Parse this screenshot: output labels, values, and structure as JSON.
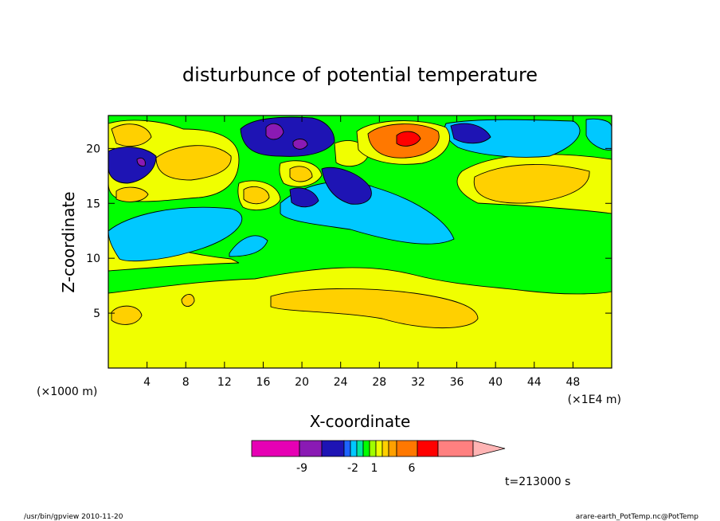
{
  "chart_data": {
    "type": "heatmap",
    "title": "disturbunce of potential temperature",
    "xlabel": "X-coordinate",
    "ylabel": "Z-coordinate",
    "x_unit_note": "(×1E4 m)",
    "y_unit_note": "(×1000 m)",
    "xlim": [
      0,
      52
    ],
    "ylim": [
      0,
      23
    ],
    "x_ticks": [
      4,
      8,
      12,
      16,
      20,
      24,
      28,
      32,
      36,
      40,
      44,
      48
    ],
    "y_ticks": [
      5,
      10,
      15,
      20
    ],
    "colorbar": {
      "labels": [
        "-9",
        "-2",
        "1",
        "6"
      ],
      "colors": [
        "#e600b4",
        "#8a1ab4",
        "#1e14b4",
        "#1e64ff",
        "#00c8ff",
        "#00e6a0",
        "#00ff00",
        "#a0ff00",
        "#f0ff00",
        "#ffd000",
        "#ffa000",
        "#ff7800",
        "#ff0000",
        "#ff8080",
        "#ffb4b4"
      ]
    },
    "time_label": "t=213000 s",
    "regions": [
      {
        "name": "lower-green",
        "level": "0",
        "color": "#00ff00"
      },
      {
        "name": "lower-yellow-band",
        "level": "1",
        "color": "#f0ff00"
      },
      {
        "name": "orange-core",
        "level": "2",
        "color": "#ffd000"
      },
      {
        "name": "cyan-upper",
        "level": "-1",
        "color": "#00c8ff"
      },
      {
        "name": "blue-core",
        "level": "-5",
        "color": "#1e14b4"
      },
      {
        "name": "purple-core",
        "level": "-9",
        "color": "#8a1ab4"
      },
      {
        "name": "red-core",
        "level": "6",
        "color": "#ff0000"
      },
      {
        "name": "dark-orange",
        "level": "4",
        "color": "#ff7800"
      }
    ]
  },
  "footer": {
    "left": "/usr/bin/gpview  2010-11-20",
    "right": "arare-earth_PotTemp.nc@PotTemp"
  }
}
